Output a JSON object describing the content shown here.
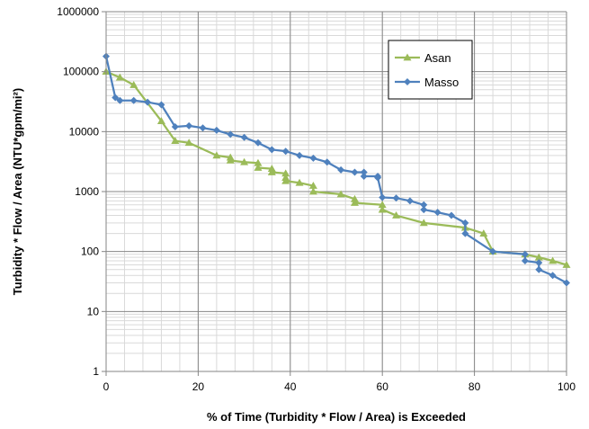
{
  "chart_data": {
    "type": "line",
    "title": "",
    "xlabel": "% of Time (Turbidity * Flow / Area) is Exceeded",
    "ylabel": "Turbidity * Flow / Area (NTU*gpm/mi²)",
    "xlim": [
      0,
      100
    ],
    "ylim": [
      1,
      1000000
    ],
    "yscale": "log",
    "grid": true,
    "legend_position": "top-right",
    "x_ticks": [
      {
        "value": 0,
        "label": "0"
      },
      {
        "value": 20,
        "label": "20"
      },
      {
        "value": 40,
        "label": "40"
      },
      {
        "value": 60,
        "label": "60"
      },
      {
        "value": 80,
        "label": "80"
      },
      {
        "value": 100,
        "label": "100"
      }
    ],
    "y_ticks": [
      {
        "value": 1,
        "label": "1"
      },
      {
        "value": 10,
        "label": "10"
      },
      {
        "value": 100,
        "label": "100"
      },
      {
        "value": 1000,
        "label": "1000"
      },
      {
        "value": 10000,
        "label": "10000"
      },
      {
        "value": 100000,
        "label": "100000"
      },
      {
        "value": 1000000,
        "label": "1000000"
      }
    ],
    "series": [
      {
        "name": "Asan",
        "color": "#9BBB59",
        "marker": "triangle",
        "x": [
          0,
          3,
          6,
          12,
          15,
          18,
          24,
          27,
          27,
          30,
          33,
          33,
          36,
          36,
          39,
          39,
          39,
          42,
          45,
          45,
          51,
          54,
          54,
          60,
          60,
          63,
          69,
          78,
          82,
          84,
          91,
          94,
          97,
          100
        ],
        "y": [
          100000,
          80000,
          60000,
          15000,
          7000,
          6500,
          4000,
          3700,
          3300,
          3100,
          3000,
          2500,
          2400,
          2100,
          2000,
          1700,
          1500,
          1400,
          1250,
          1000,
          900,
          750,
          650,
          600,
          500,
          400,
          300,
          250,
          200,
          100,
          90,
          80,
          70,
          60
        ]
      },
      {
        "name": "Masso",
        "color": "#4F81BD",
        "marker": "diamond",
        "x": [
          0,
          2,
          3,
          6,
          9,
          12,
          15,
          18,
          21,
          24,
          27,
          30,
          33,
          36,
          39,
          42,
          45,
          48,
          51,
          54,
          56,
          56,
          59,
          59,
          60,
          63,
          66,
          69,
          69,
          72,
          75,
          78,
          78,
          84,
          91,
          91,
          94,
          94,
          97,
          100
        ],
        "y": [
          180000,
          37000,
          33000,
          33000,
          31000,
          28000,
          12000,
          12500,
          11500,
          10500,
          9000,
          8000,
          6500,
          5000,
          4700,
          4000,
          3600,
          3100,
          2300,
          2100,
          2100,
          1800,
          1800,
          1700,
          800,
          780,
          700,
          600,
          500,
          450,
          400,
          300,
          200,
          100,
          90,
          70,
          65,
          50,
          40,
          30
        ]
      }
    ]
  }
}
